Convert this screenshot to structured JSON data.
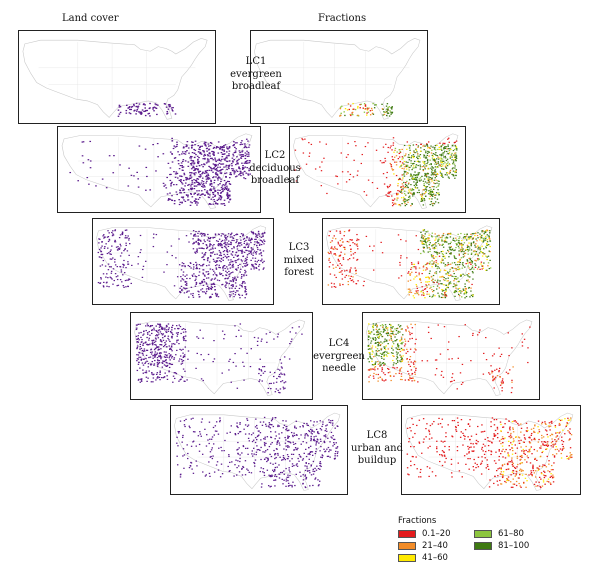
{
  "columns": {
    "left_title": "Land cover",
    "right_title": "Fractions"
  },
  "rows": [
    {
      "code": "LC1",
      "line1": "evergreen",
      "line2": "broadleaf"
    },
    {
      "code": "LC2",
      "line1": "deciduous",
      "line2": "broadleaf"
    },
    {
      "code": "LC3",
      "line1": "mixed",
      "line2": "forest"
    },
    {
      "code": "LC4",
      "line1": "evergreen",
      "line2": "needle"
    },
    {
      "code": "LC8",
      "line1": "urban and",
      "line2": "buildup"
    }
  ],
  "land_cover_color": "#5a1a8c",
  "legend": {
    "title": "Fractions",
    "items": [
      {
        "label": "0.1–20",
        "color": "#e31a1c"
      },
      {
        "label": "61–80",
        "color": "#8dc63f"
      },
      {
        "label": "21–40",
        "color": "#f28c28"
      },
      {
        "label": "81–100",
        "color": "#3f7a12"
      },
      {
        "label": "41–60",
        "color": "#ffea00"
      }
    ]
  }
}
